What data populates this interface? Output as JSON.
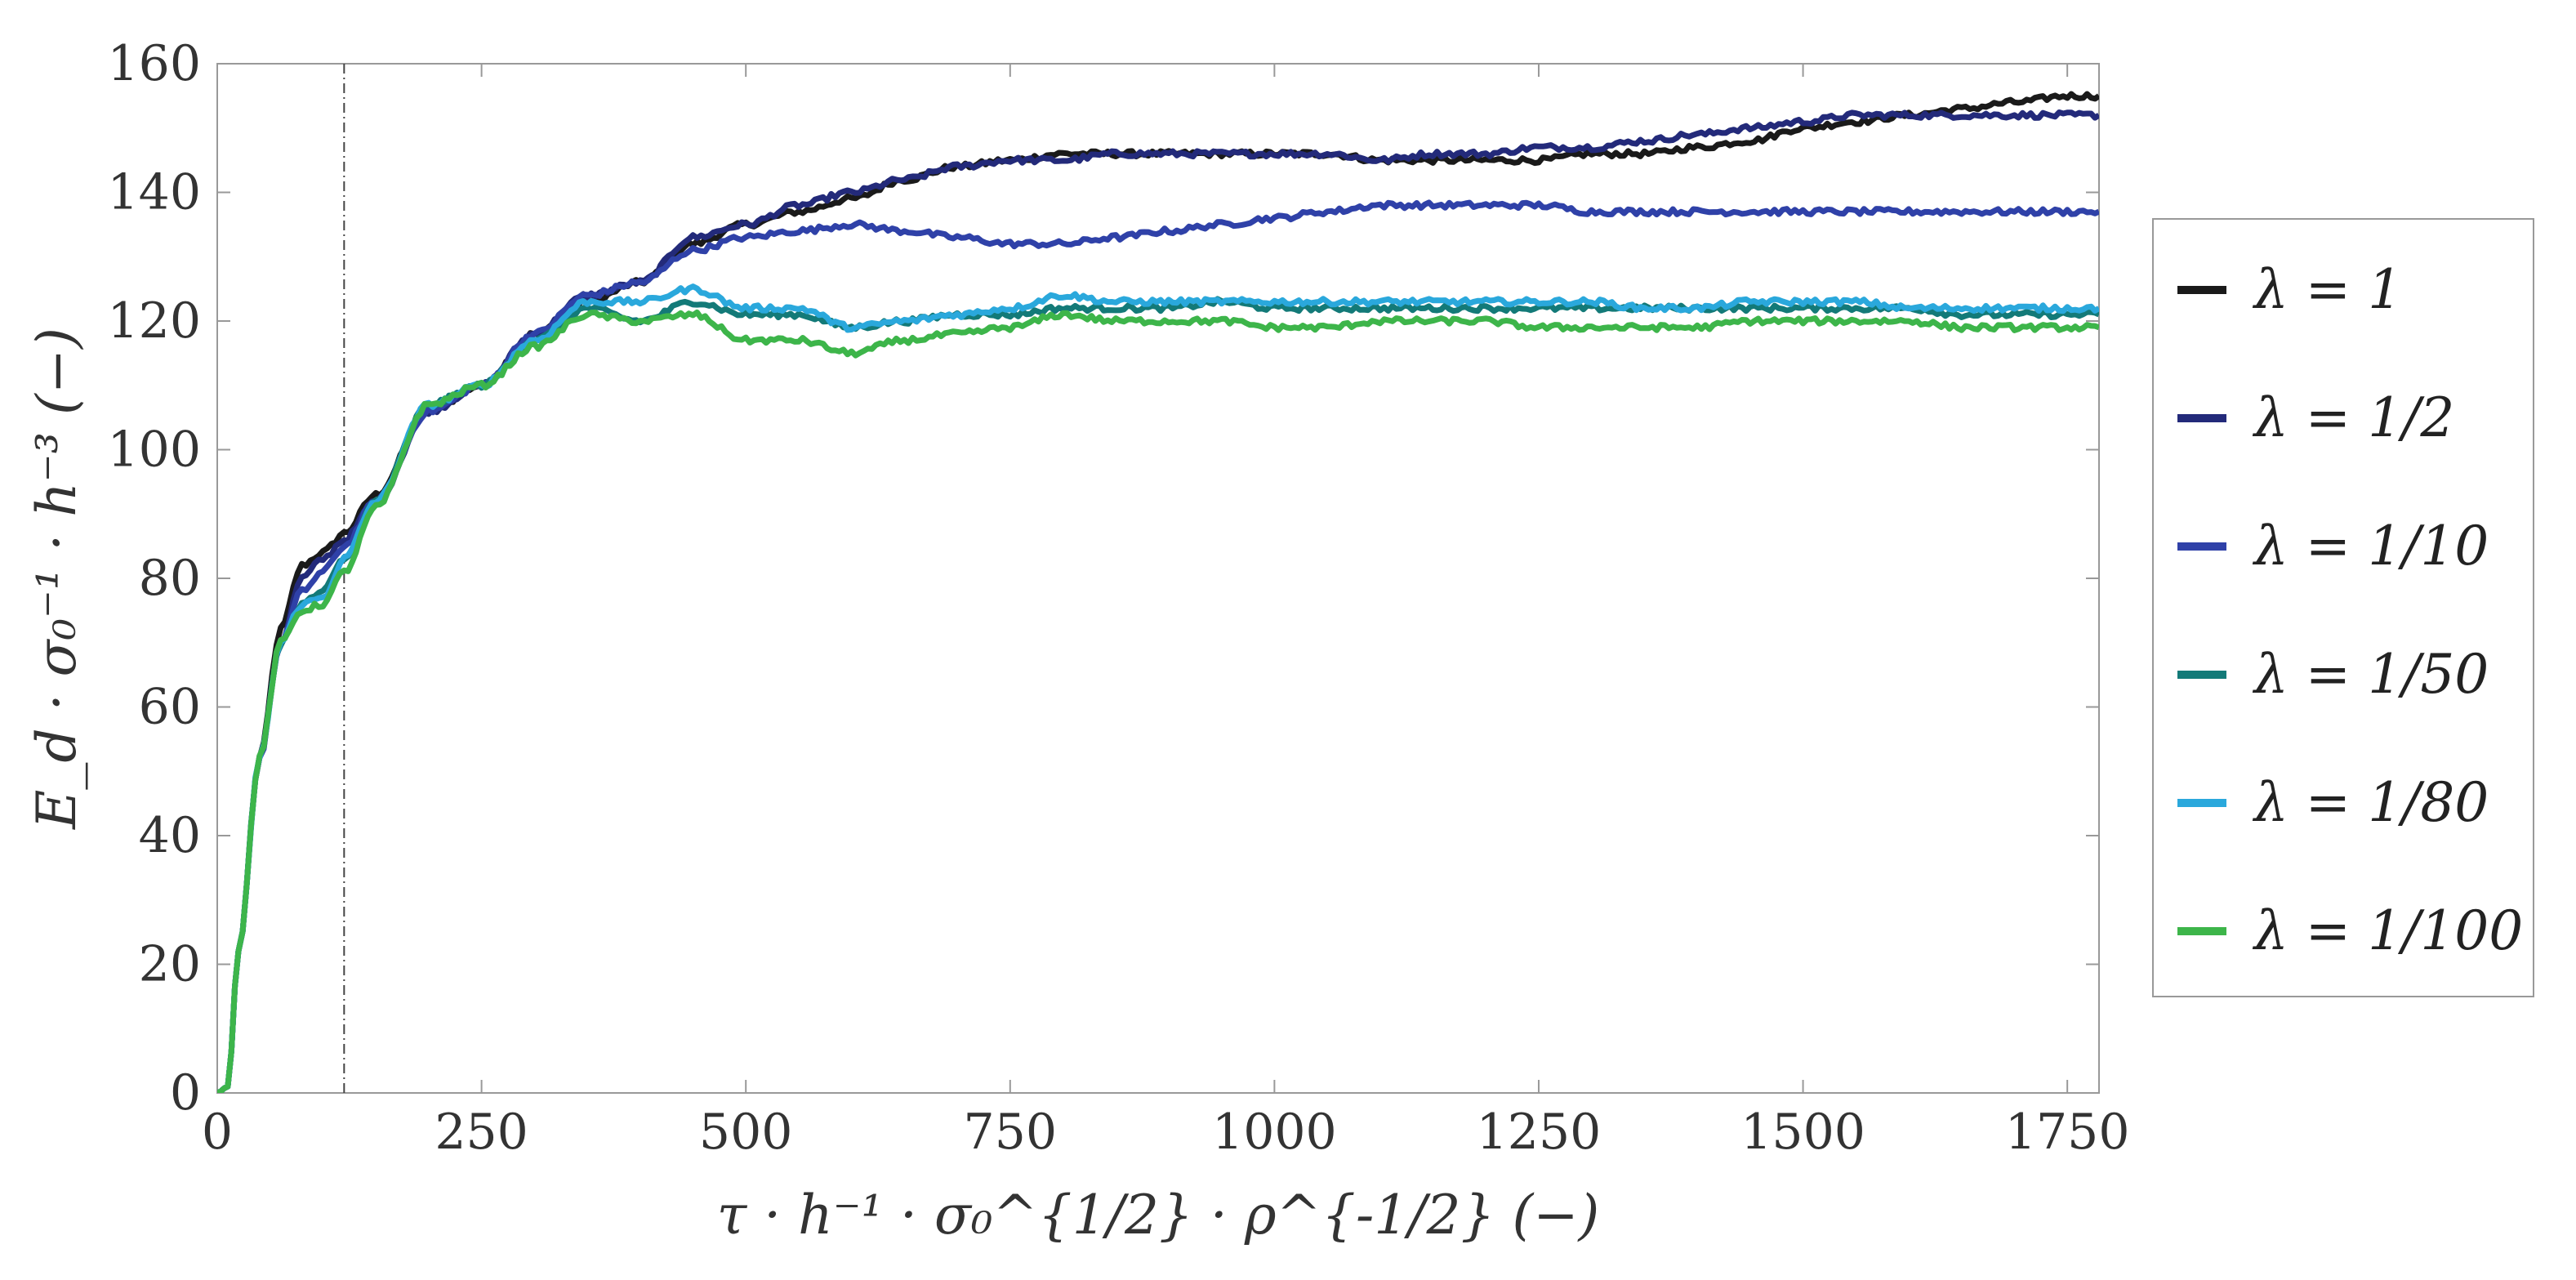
{
  "chart_data": {
    "type": "line",
    "title": "",
    "xlabel": "τ · h⁻¹ · σ₀^{1/2} · ρ^{-1/2} (−)",
    "ylabel": "E_d · σ₀⁻¹ · h⁻³ (−)",
    "xlim": [
      0,
      1780
    ],
    "ylim": [
      0,
      160
    ],
    "xticks": [
      0,
      250,
      500,
      750,
      1000,
      1250,
      1500,
      1750
    ],
    "yticks": [
      0,
      20,
      40,
      60,
      80,
      100,
      120,
      140,
      160
    ],
    "grid": false,
    "legend_position": "right-outside",
    "vline": {
      "x": 120,
      "style": "dash-dot"
    },
    "series": [
      {
        "name": "λ = 1",
        "color": "#1a1a1a",
        "x": [
          0,
          10,
          20,
          40,
          60,
          80,
          100,
          120,
          150,
          200,
          250,
          300,
          350,
          400,
          450,
          500,
          550,
          600,
          650,
          700,
          750,
          800,
          850,
          900,
          950,
          1000,
          1050,
          1100,
          1150,
          1200,
          1250,
          1300,
          1350,
          1400,
          1450,
          1500,
          1550,
          1600,
          1650,
          1700,
          1750,
          1780
        ],
        "y": [
          0,
          1,
          22,
          52,
          72,
          82,
          84,
          87,
          93,
          106,
          110,
          118,
          123,
          126,
          132,
          135,
          137,
          139,
          142,
          144,
          145,
          146,
          146,
          146,
          146,
          146,
          146,
          145,
          145,
          145,
          145,
          146,
          146,
          147,
          148,
          150,
          151,
          152,
          153,
          154,
          155,
          155
        ]
      },
      {
        "name": "λ = 1/2",
        "color": "#232a7a",
        "x": [
          0,
          10,
          20,
          40,
          60,
          80,
          100,
          120,
          150,
          200,
          250,
          300,
          350,
          400,
          450,
          500,
          550,
          600,
          650,
          700,
          750,
          800,
          850,
          900,
          950,
          1000,
          1050,
          1100,
          1150,
          1200,
          1250,
          1300,
          1350,
          1400,
          1450,
          1500,
          1550,
          1600,
          1650,
          1700,
          1750,
          1780
        ],
        "y": [
          0,
          1,
          22,
          52,
          70,
          80,
          83,
          86,
          92,
          106,
          110,
          118,
          124,
          126,
          133,
          135,
          138,
          140,
          142,
          144,
          145,
          145,
          146,
          146,
          146,
          146,
          146,
          145,
          146,
          146,
          147,
          147,
          148,
          149,
          150,
          151,
          152,
          152,
          152,
          152,
          152,
          152
        ]
      },
      {
        "name": "λ = 1/10",
        "color": "#2f41a8",
        "x": [
          0,
          10,
          20,
          40,
          60,
          80,
          100,
          120,
          150,
          200,
          250,
          300,
          350,
          400,
          450,
          500,
          550,
          600,
          650,
          700,
          750,
          800,
          850,
          900,
          950,
          1000,
          1050,
          1100,
          1150,
          1200,
          1250,
          1300,
          1350,
          1400,
          1450,
          1500,
          1550,
          1600,
          1650,
          1700,
          1750,
          1780
        ],
        "y": [
          0,
          1,
          22,
          52,
          70,
          78,
          81,
          85,
          92,
          106,
          110,
          118,
          124,
          126,
          131,
          133,
          134,
          135,
          134,
          133,
          132,
          132,
          133,
          134,
          135,
          136,
          137,
          138,
          138,
          138,
          138,
          137,
          137,
          137,
          137,
          137,
          137,
          137,
          137,
          137,
          137,
          137
        ]
      },
      {
        "name": "λ = 1/50",
        "color": "#137a78",
        "x": [
          0,
          10,
          20,
          40,
          60,
          80,
          100,
          120,
          150,
          200,
          250,
          300,
          350,
          400,
          450,
          500,
          550,
          600,
          650,
          700,
          750,
          800,
          850,
          900,
          950,
          1000,
          1050,
          1100,
          1150,
          1200,
          1250,
          1300,
          1350,
          1400,
          1450,
          1500,
          1550,
          1600,
          1650,
          1700,
          1750,
          1780
        ],
        "y": [
          0,
          1,
          22,
          52,
          70,
          76,
          78,
          83,
          92,
          107,
          110,
          117,
          122,
          120,
          123,
          121,
          121,
          119,
          120,
          121,
          121,
          122,
          122,
          122,
          123,
          122,
          122,
          122,
          122,
          122,
          122,
          122,
          122,
          122,
          122,
          122,
          122,
          122,
          121,
          121,
          121,
          121
        ]
      },
      {
        "name": "λ = 1/80",
        "color": "#2aa8dc",
        "x": [
          0,
          10,
          20,
          40,
          60,
          80,
          100,
          120,
          150,
          200,
          250,
          300,
          350,
          400,
          450,
          500,
          550,
          600,
          650,
          700,
          750,
          800,
          850,
          900,
          950,
          1000,
          1050,
          1100,
          1150,
          1200,
          1250,
          1300,
          1350,
          1400,
          1450,
          1500,
          1550,
          1600,
          1650,
          1700,
          1750,
          1780
        ],
        "y": [
          0,
          1,
          22,
          52,
          70,
          76,
          77,
          83,
          92,
          107,
          110,
          117,
          123,
          123,
          125,
          122,
          122,
          119,
          120,
          121,
          122,
          124,
          123,
          123,
          123,
          123,
          123,
          123,
          123,
          123,
          123,
          123,
          122,
          122,
          123,
          123,
          123,
          122,
          122,
          122,
          122,
          122
        ]
      },
      {
        "name": "λ = 1/100",
        "color": "#3db54a",
        "x": [
          0,
          10,
          20,
          40,
          60,
          80,
          100,
          120,
          150,
          200,
          250,
          300,
          350,
          400,
          450,
          500,
          550,
          600,
          650,
          700,
          750,
          800,
          850,
          900,
          950,
          1000,
          1050,
          1100,
          1150,
          1200,
          1250,
          1300,
          1350,
          1400,
          1450,
          1500,
          1550,
          1600,
          1650,
          1700,
          1750,
          1780
        ],
        "y": [
          0,
          1,
          22,
          52,
          70,
          75,
          76,
          81,
          91,
          107,
          110,
          116,
          121,
          120,
          121,
          117,
          117,
          115,
          117,
          118,
          119,
          121,
          120,
          120,
          120,
          119,
          119,
          120,
          120,
          120,
          119,
          119,
          119,
          119,
          120,
          120,
          120,
          120,
          119,
          119,
          119,
          119
        ]
      }
    ]
  }
}
